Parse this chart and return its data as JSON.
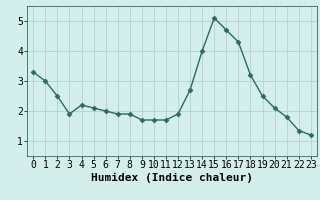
{
  "x": [
    0,
    1,
    2,
    3,
    4,
    5,
    6,
    7,
    8,
    9,
    10,
    11,
    12,
    13,
    14,
    15,
    16,
    17,
    18,
    19,
    20,
    21,
    22,
    23
  ],
  "y": [
    3.3,
    3.0,
    2.5,
    1.9,
    2.2,
    2.1,
    2.0,
    1.9,
    1.9,
    1.7,
    1.7,
    1.7,
    1.9,
    2.7,
    4.0,
    5.1,
    4.7,
    4.3,
    3.2,
    2.5,
    2.1,
    1.8,
    1.35,
    1.2
  ],
  "line_color": "#2e6b5e",
  "marker": "D",
  "marker_size": 2.5,
  "bg_color": "#d4efeb",
  "grid_color": "#b0d4ce",
  "xlabel": "Humidex (Indice chaleur)",
  "xlabel_fontsize": 8,
  "tick_fontsize": 7,
  "ylim": [
    0.5,
    5.5
  ],
  "xlim": [
    -0.5,
    23.5
  ],
  "yticks": [
    1,
    2,
    3,
    4,
    5
  ],
  "xticks": [
    0,
    1,
    2,
    3,
    4,
    5,
    6,
    7,
    8,
    9,
    10,
    11,
    12,
    13,
    14,
    15,
    16,
    17,
    18,
    19,
    20,
    21,
    22,
    23
  ]
}
